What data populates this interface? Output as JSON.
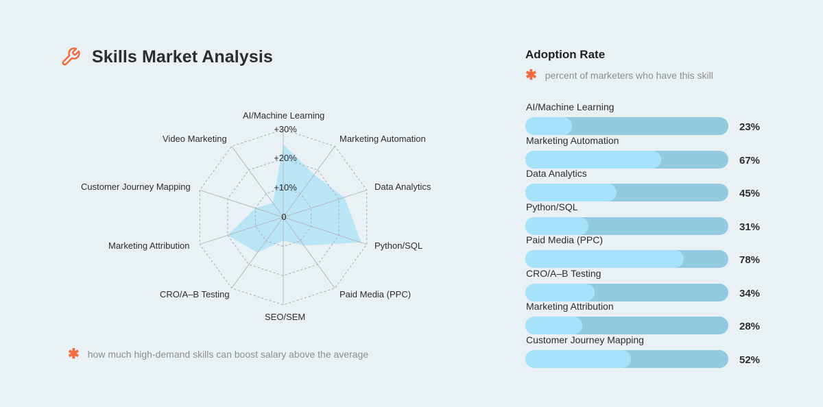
{
  "header": {
    "title": "Skills Market Analysis",
    "icon": "wrench-icon"
  },
  "radar": {
    "footnote": "how much high-demand skills can boost salary above the average",
    "footnote_icon": "asterisk-icon",
    "ticks": [
      "0",
      "+10%",
      "+20%",
      "+30%"
    ]
  },
  "panel": {
    "title": "Adoption Rate",
    "note": "percent of marketers who have this skill",
    "note_icon": "asterisk-icon",
    "items": [
      {
        "label": "AI/Machine Learning",
        "value": 23,
        "display": "23%"
      },
      {
        "label": "Marketing Automation",
        "value": 67,
        "display": "67%"
      },
      {
        "label": "Data Analytics",
        "value": 45,
        "display": "45%"
      },
      {
        "label": "Python/SQL",
        "value": 31,
        "display": "31%"
      },
      {
        "label": "Paid Media (PPC)",
        "value": 78,
        "display": "78%"
      },
      {
        "label": "CRO/A–B Testing",
        "value": 34,
        "display": "34%"
      },
      {
        "label": "Marketing Attribution",
        "value": 28,
        "display": "28%"
      },
      {
        "label": "Customer Journey Mapping",
        "value": 52,
        "display": "52%"
      }
    ]
  },
  "colors": {
    "accent": "#f26a3d",
    "radar_fill": "#a9e0f7",
    "bar_fill": "#a6e2f9",
    "bar_track": "#92cbe0",
    "background": "#e9f1f5"
  },
  "chart_data": [
    {
      "type": "radar",
      "title": "Skills Market Analysis",
      "subtitle": "how much high-demand skills can boost salary above the average",
      "categories": [
        "AI/Machine Learning",
        "Marketing Automation",
        "Data Analytics",
        "Python/SQL",
        "Paid Media (PPC)",
        "SEO/SEM",
        "CRO/A–B Testing",
        "Marketing Attribution",
        "Customer Journey Mapping",
        "Video Marketing"
      ],
      "values": [
        25,
        18,
        22,
        28,
        12,
        8,
        15,
        20,
        10,
        6
      ],
      "unit": "% salary boost",
      "rlim": [
        0,
        30
      ],
      "ticks": [
        "0",
        "+10%",
        "+20%",
        "+30%"
      ],
      "grid": true
    },
    {
      "type": "bar",
      "orientation": "horizontal",
      "title": "Adoption Rate",
      "subtitle": "percent of marketers who have this skill",
      "categories": [
        "AI/Machine Learning",
        "Marketing Automation",
        "Data Analytics",
        "Python/SQL",
        "Paid Media (PPC)",
        "CRO/A–B Testing",
        "Marketing Attribution",
        "Customer Journey Mapping"
      ],
      "values": [
        23,
        67,
        45,
        31,
        78,
        34,
        28,
        52
      ],
      "xlim": [
        0,
        100
      ],
      "unit": "%"
    }
  ]
}
